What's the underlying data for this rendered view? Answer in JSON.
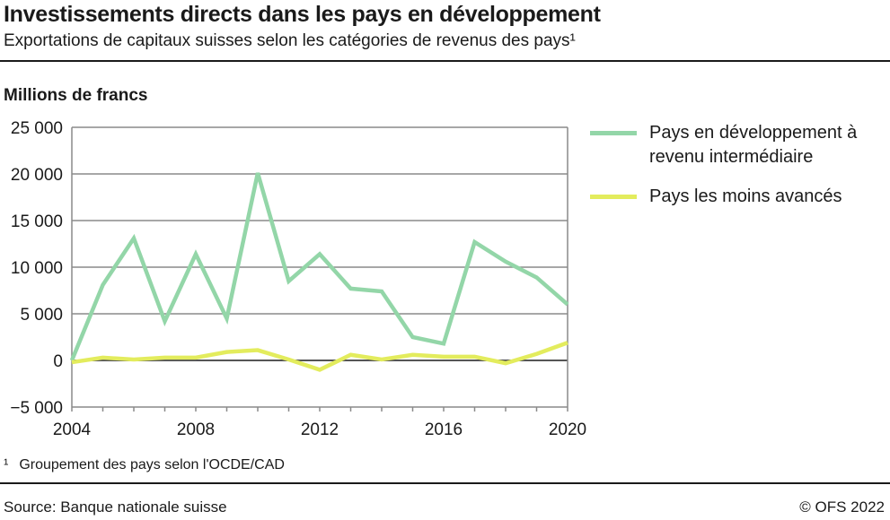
{
  "header": {
    "title": "Investissements directs dans les pays en développement",
    "subtitle": "Exportations de capitaux suisses selon les catégories de revenus des pays¹"
  },
  "footer": {
    "footnote_marker": "¹",
    "footnote": "Groupement des pays selon l'OCDE/CAD",
    "source": "Source: Banque nationale suisse",
    "copyright": "© OFS 2022"
  },
  "chart_data": {
    "type": "line",
    "title": "Investissements directs dans les pays en développement",
    "subtitle": "Exportations de capitaux suisses selon les catégories de revenus des pays¹",
    "ylabel": "Millions de francs",
    "xlabel": "",
    "x": [
      2004,
      2005,
      2006,
      2007,
      2008,
      2009,
      2010,
      2011,
      2012,
      2013,
      2014,
      2015,
      2016,
      2017,
      2018,
      2019,
      2020
    ],
    "xlim": [
      2004,
      2020
    ],
    "ylim": [
      -5000,
      25000
    ],
    "x_tick_labels": [
      "2004",
      "2008",
      "2012",
      "2016",
      "2020"
    ],
    "x_tick_values": [
      2004,
      2008,
      2012,
      2016,
      2020
    ],
    "y_tick_values": [
      25000,
      20000,
      15000,
      10000,
      5000,
      0,
      -5000
    ],
    "y_tick_labels": [
      "25 000",
      "20 000",
      "15 000",
      "10 000",
      "5 000",
      "0",
      "−5 000"
    ],
    "grid": true,
    "legend_position": "right",
    "series": [
      {
        "name": "Pays en développement à revenu intermédiaire",
        "name_lines": [
          "Pays en développement à",
          "revenu intermédiaire"
        ],
        "color": "#93d6a8",
        "values": [
          0,
          8100,
          13100,
          4200,
          11400,
          4500,
          20100,
          8500,
          11400,
          7700,
          7400,
          2500,
          1800,
          12700,
          10600,
          8900,
          6000
        ]
      },
      {
        "name": "Pays les moins avancés",
        "name_lines": [
          "Pays les moins avancés"
        ],
        "color": "#e3ec5d",
        "values": [
          -200,
          300,
          100,
          300,
          300,
          900,
          1100,
          100,
          -1000,
          600,
          100,
          600,
          400,
          400,
          -300,
          700,
          1900
        ]
      }
    ]
  }
}
